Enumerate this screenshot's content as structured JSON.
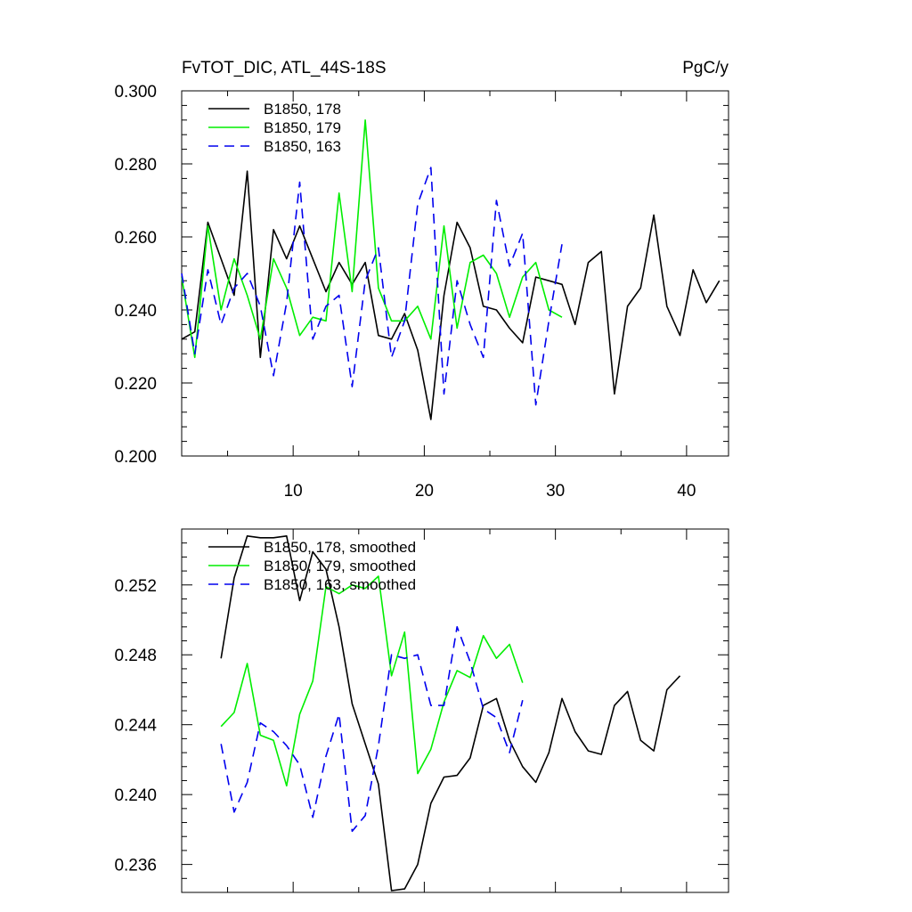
{
  "chart_data": [
    {
      "type": "line",
      "title": "FvTOT_DIC, ATL_44S-18S",
      "units": "PgC/y",
      "xlabel": "",
      "ylabel": "",
      "xlim": [
        1.5,
        43.2
      ],
      "ylim": [
        0.2,
        0.3
      ],
      "xticks": [
        10,
        20,
        30,
        40
      ],
      "xtick_labels": [
        "10",
        "20",
        "30",
        "40"
      ],
      "yticks": [
        0.2,
        0.22,
        0.24,
        0.26,
        0.28,
        0.3
      ],
      "ytick_labels": [
        "0.200",
        "0.220",
        "0.240",
        "0.260",
        "0.280",
        "0.300"
      ],
      "grid": false,
      "legend_position": "top-left",
      "series": [
        {
          "name": "B1850, 178",
          "color": "#000000",
          "dash": "solid",
          "x": [
            1.5,
            2.5,
            3.5,
            4.5,
            5.5,
            6.5,
            7.5,
            8.5,
            9.5,
            10.5,
            11.5,
            12.5,
            13.5,
            14.5,
            15.5,
            16.5,
            17.5,
            18.5,
            19.5,
            20.5,
            21.5,
            22.5,
            23.5,
            24.5,
            25.5,
            26.5,
            27.5,
            28.5,
            29.5,
            30.5,
            31.5,
            32.5,
            33.5,
            34.5,
            35.5,
            36.5,
            37.5,
            38.5,
            39.5,
            40.5,
            41.5,
            42.5
          ],
          "y": [
            0.232,
            0.234,
            0.264,
            0.254,
            0.244,
            0.278,
            0.227,
            0.262,
            0.254,
            0.263,
            0.254,
            0.245,
            0.253,
            0.247,
            0.253,
            0.233,
            0.232,
            0.239,
            0.229,
            0.21,
            0.244,
            0.264,
            0.257,
            0.241,
            0.24,
            0.235,
            0.231,
            0.249,
            0.248,
            0.247,
            0.236,
            0.253,
            0.256,
            0.217,
            0.241,
            0.246,
            0.266,
            0.241,
            0.233,
            0.251,
            0.242,
            0.248
          ]
        },
        {
          "name": "B1850, 179",
          "color": "#00ee00",
          "dash": "solid",
          "x": [
            1.5,
            2.5,
            3.5,
            4.5,
            5.5,
            6.5,
            7.5,
            8.5,
            9.5,
            10.5,
            11.5,
            12.5,
            13.5,
            14.5,
            15.5,
            16.5,
            17.5,
            18.5,
            19.5,
            20.5,
            21.5,
            22.5,
            23.5,
            24.5,
            25.5,
            26.5,
            27.5,
            28.5,
            29.5,
            30.5
          ],
          "y": [
            0.249,
            0.227,
            0.263,
            0.24,
            0.254,
            0.244,
            0.232,
            0.254,
            0.246,
            0.233,
            0.238,
            0.237,
            0.272,
            0.245,
            0.292,
            0.246,
            0.237,
            0.237,
            0.241,
            0.232,
            0.263,
            0.235,
            0.253,
            0.255,
            0.25,
            0.238,
            0.249,
            0.253,
            0.24,
            0.238
          ]
        },
        {
          "name": "B1850, 163",
          "color": "#0000ee",
          "dash": "dashed",
          "x": [
            1.5,
            2.5,
            3.5,
            4.5,
            5.5,
            6.5,
            7.5,
            8.5,
            9.5,
            10.5,
            11.5,
            12.5,
            13.5,
            14.5,
            15.5,
            16.5,
            17.5,
            18.5,
            19.5,
            20.5,
            21.5,
            22.5,
            23.5,
            24.5,
            25.5,
            26.5,
            27.5,
            28.5,
            29.5,
            30.5
          ],
          "y": [
            0.25,
            0.228,
            0.251,
            0.236,
            0.246,
            0.25,
            0.241,
            0.222,
            0.242,
            0.275,
            0.232,
            0.241,
            0.244,
            0.219,
            0.248,
            0.257,
            0.227,
            0.237,
            0.269,
            0.279,
            0.217,
            0.248,
            0.236,
            0.227,
            0.27,
            0.252,
            0.261,
            0.214,
            0.237,
            0.258
          ]
        }
      ]
    },
    {
      "type": "line",
      "title": "",
      "xlabel": "",
      "ylabel": "",
      "xlim": [
        1.5,
        43.2
      ],
      "ylim": [
        0.2344,
        0.2552
      ],
      "xticks": [
        10,
        20,
        30,
        40
      ],
      "yticks": [
        0.236,
        0.24,
        0.244,
        0.248,
        0.252
      ],
      "ytick_labels": [
        "0.236",
        "0.240",
        "0.244",
        "0.248",
        "0.252"
      ],
      "grid": false,
      "legend_position": "top-left",
      "series": [
        {
          "name": "B1850, 178, smoothed",
          "color": "#000000",
          "dash": "solid",
          "x": [
            4.5,
            5.5,
            6.5,
            7.5,
            8.5,
            9.5,
            10.5,
            11.5,
            12.5,
            13.5,
            14.5,
            15.5,
            16.5,
            17.5,
            18.5,
            19.5,
            20.5,
            21.5,
            22.5,
            23.5,
            24.5,
            25.5,
            26.5,
            27.5,
            28.5,
            29.5,
            30.5,
            31.5,
            32.5,
            33.5,
            34.5,
            35.5,
            36.5,
            37.5,
            38.5,
            39.5
          ],
          "y": [
            0.2478,
            0.2524,
            0.2548,
            0.2547,
            0.2547,
            0.2548,
            0.2511,
            0.2539,
            0.2529,
            0.2496,
            0.2452,
            0.2429,
            0.2406,
            0.2345,
            0.2346,
            0.236,
            0.2395,
            0.241,
            0.2411,
            0.2421,
            0.2451,
            0.2455,
            0.2431,
            0.2416,
            0.2407,
            0.2424,
            0.2455,
            0.2436,
            0.2425,
            0.2423,
            0.2451,
            0.2459,
            0.2431,
            0.2425,
            0.246,
            0.2468
          ]
        },
        {
          "name": "B1850, 179, smoothed",
          "color": "#00ee00",
          "dash": "solid",
          "x": [
            4.5,
            5.5,
            6.5,
            7.5,
            8.5,
            9.5,
            10.5,
            11.5,
            12.5,
            13.5,
            14.5,
            15.5,
            16.5,
            17.5,
            18.5,
            19.5,
            20.5,
            21.5,
            22.5,
            23.5,
            24.5,
            25.5,
            26.5,
            27.5
          ],
          "y": [
            0.2439,
            0.2447,
            0.2475,
            0.2434,
            0.2431,
            0.2405,
            0.2446,
            0.2465,
            0.2519,
            0.2515,
            0.252,
            0.2518,
            0.2525,
            0.2468,
            0.2493,
            0.2412,
            0.2426,
            0.2453,
            0.2471,
            0.2467,
            0.2491,
            0.2478,
            0.2486,
            0.2464
          ]
        },
        {
          "name": "B1850, 163, smoothed",
          "color": "#0000ee",
          "dash": "dashed",
          "x": [
            4.5,
            5.5,
            6.5,
            7.5,
            8.5,
            9.5,
            10.5,
            11.5,
            12.5,
            13.5,
            14.5,
            15.5,
            16.5,
            17.5,
            18.5,
            19.5,
            20.5,
            21.5,
            22.5,
            23.5,
            24.5,
            25.5,
            26.5,
            27.5
          ],
          "y": [
            0.2429,
            0.239,
            0.2407,
            0.2441,
            0.2436,
            0.2428,
            0.2417,
            0.2387,
            0.2422,
            0.2446,
            0.2379,
            0.2388,
            0.2428,
            0.248,
            0.2478,
            0.248,
            0.2451,
            0.2451,
            0.2496,
            0.2476,
            0.2449,
            0.2444,
            0.2424,
            0.2454
          ]
        }
      ]
    }
  ]
}
